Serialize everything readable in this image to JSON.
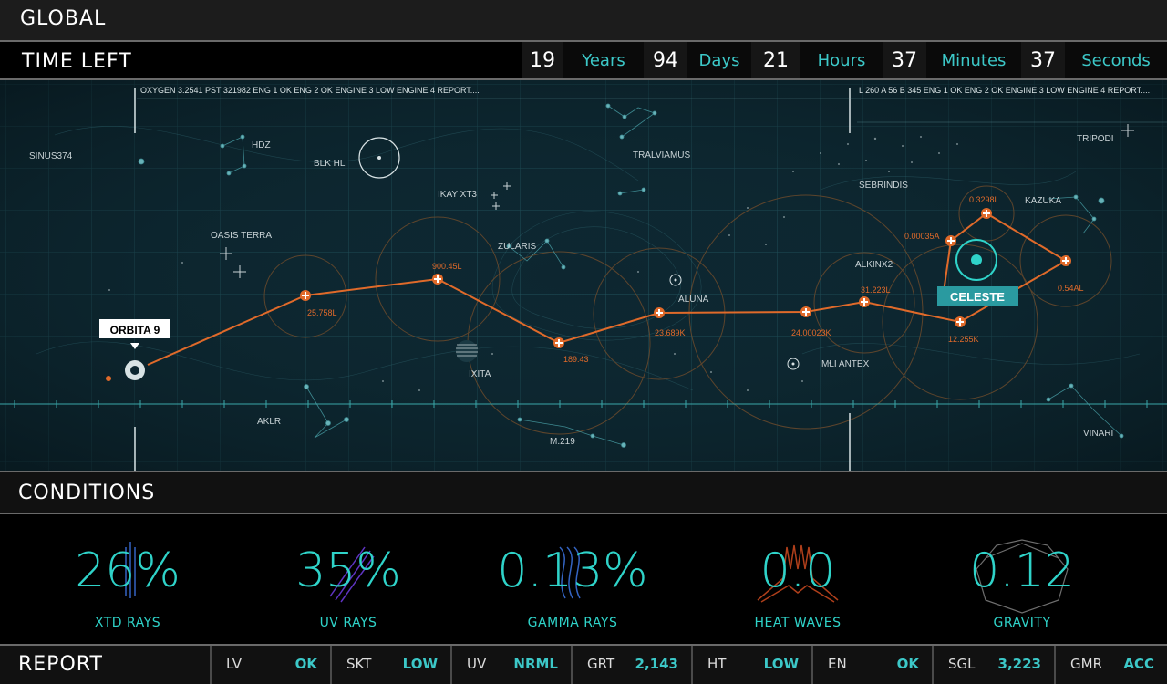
{
  "global": {
    "title": "GLOBAL"
  },
  "time_left": {
    "title": "TIME LEFT",
    "units": [
      {
        "value": "19",
        "label": "Years"
      },
      {
        "value": "94",
        "label": "Days"
      },
      {
        "value": "21",
        "label": "Hours"
      },
      {
        "value": "37",
        "label": "Minutes"
      },
      {
        "value": "37",
        "label": "Seconds"
      }
    ]
  },
  "map": {
    "ticker_left": "OXYGEN 3.2541   PST 321982   ENG 1 OK ENG 2 OK ENGINE 3 LOW ENGINE 4 REPORT....",
    "ticker_right": "L 260   A 56 B 345   ENG 1 OK ENG 2 OK ENGINE 3 LOW ENGINE 4 REPORT....",
    "places": {
      "sinus": "SINUS374",
      "hdz": "HDZ",
      "blk": "BLK HL",
      "tralviamus": "TRALVIAMUS",
      "tripodi": "TRIPODI",
      "sebrindis": "SEBRINDIS",
      "ikay": "IKAY XT3",
      "oasis": "OASIS TERRA",
      "zularis": "ZULARIS",
      "kazuka": "KAZUKA",
      "alkinx": "ALKINX2",
      "aluna": "ALUNA",
      "mli": "MLI ANTEX",
      "ixita": "IXITA",
      "aklr": "AKLR",
      "m219": "M.219",
      "vinari": "VINARI"
    },
    "route_labels": {
      "r1": "25.758L",
      "r2": "900.45L",
      "r3": "189.43",
      "r4": "23.689K",
      "r5": "24.00023K",
      "r6": "31.223L",
      "r7": "12.255K",
      "r8": "0.00035A",
      "r9": "0.3298L",
      "r10": "0.54AL"
    },
    "origin": "ORBITA 9",
    "destination": "CELESTE"
  },
  "conditions": {
    "title": "CONDITIONS",
    "items": [
      {
        "value": "26%",
        "label": "XTD RAYS"
      },
      {
        "value": "35%",
        "label": "UV RAYS"
      },
      {
        "value": "0.13%",
        "label": "GAMMA RAYS"
      },
      {
        "value": "0.0",
        "label": "HEAT WAVES"
      },
      {
        "value": "0.12",
        "label": "GRAVITY"
      }
    ]
  },
  "report": {
    "title": "REPORT",
    "items": [
      {
        "key": "LV",
        "value": "OK"
      },
      {
        "key": "SKT",
        "value": "LOW"
      },
      {
        "key": "UV",
        "value": "NRML"
      },
      {
        "key": "GRT",
        "value": "2,143"
      },
      {
        "key": "HT",
        "value": "LOW"
      },
      {
        "key": "EN",
        "value": "OK"
      },
      {
        "key": "SGL",
        "value": "3,223"
      },
      {
        "key": "GMR",
        "value": "ACC"
      }
    ]
  },
  "colors": {
    "accent": "#2fd3c9",
    "route": "#e06a2a",
    "map_bg": "#0e2a33"
  }
}
